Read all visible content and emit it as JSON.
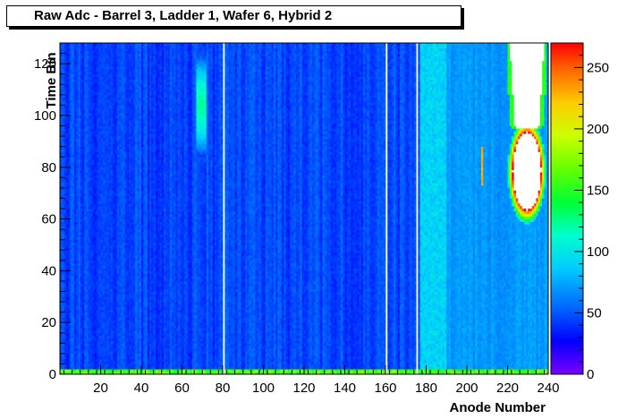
{
  "chart_data": {
    "type": "heatmap",
    "title": "Raw Adc - Barrel 3, Ladder 1, Wafer 6, Hybrid 2",
    "xlabel": "Anode Number",
    "ylabel": "Time Bin",
    "xlim": [
      0,
      240
    ],
    "ylim": [
      0,
      128
    ],
    "zlim": [
      0,
      270
    ],
    "x_ticks": [
      20,
      40,
      60,
      80,
      100,
      120,
      140,
      160,
      180,
      200,
      220,
      240
    ],
    "y_ticks": [
      0,
      20,
      40,
      60,
      80,
      100,
      120
    ],
    "z_ticks": [
      0,
      50,
      100,
      150,
      200,
      250
    ],
    "x_tick_labels": [
      "20",
      "40",
      "60",
      "80",
      "100",
      "120",
      "140",
      "160",
      "180",
      "200",
      "220",
      "240"
    ],
    "y_tick_labels": [
      "0",
      "20",
      "40",
      "60",
      "80",
      "100",
      "120"
    ],
    "z_tick_labels": [
      "0",
      "50",
      "100",
      "150",
      "200",
      "250"
    ],
    "colorscale": [
      "#7b00ff",
      "#0000ff",
      "#0066ff",
      "#00ccff",
      "#00ffcc",
      "#00ff33",
      "#66ff00",
      "#ccff00",
      "#ffcc00",
      "#ff6600",
      "#ff0000"
    ],
    "baseline_level": 45,
    "empty_anode_columns": [
      80,
      160,
      175
    ],
    "saturated_region": {
      "anode_range": [
        222,
        236
      ],
      "timebin_range": [
        63,
        93
      ],
      "level": "above 270"
    },
    "features": [
      {
        "label": "hot spot",
        "anode": 69,
        "timebins": [
          90,
          117
        ],
        "level": 120
      },
      {
        "label": "bright band",
        "anode_range": [
          177,
          190
        ],
        "level": 90
      },
      {
        "label": "elevated region",
        "anode_range": [
          190,
          240
        ],
        "level": 70
      },
      {
        "label": "small hit",
        "anode": 207,
        "timebins": [
          73,
          87
        ],
        "level": 230
      }
    ]
  }
}
